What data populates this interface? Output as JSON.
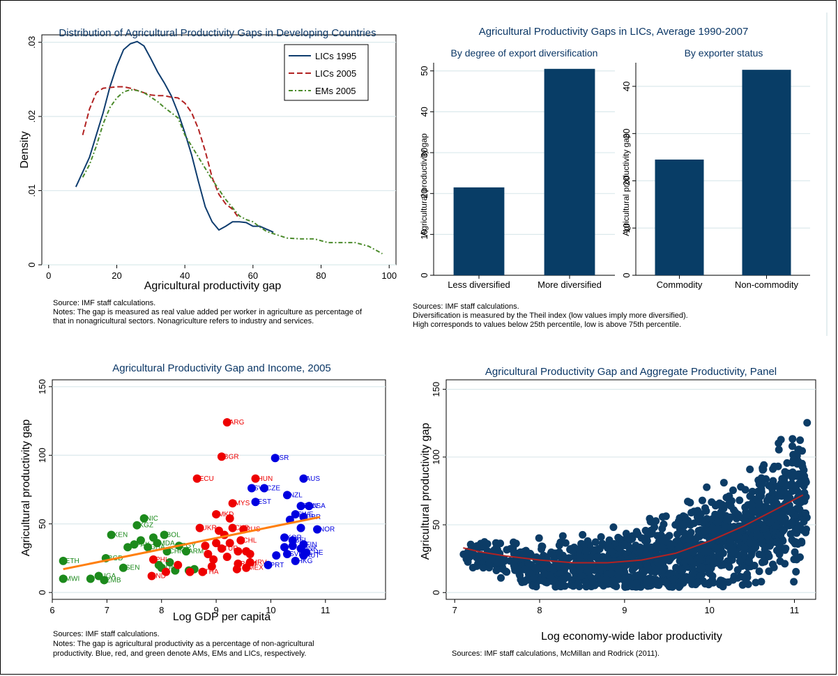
{
  "colors": {
    "title": "#0b3766",
    "lics_1995": "#0e3c6e",
    "lics_2005": "#b22222",
    "ems_2005": "#4a8a2a",
    "bar": "#083d66",
    "am": "#0000e0",
    "em": "#ee0000",
    "lic": "#1c8a1c",
    "fit": "#ff7f0e",
    "panel_dot": "#0c3c66",
    "panel_fit": "#b22222",
    "grid": "#dbe9ec"
  },
  "chart_data": [
    {
      "id": "density",
      "type": "line",
      "title": "Distribution of Agricultural Productivity Gaps in Developing Countries",
      "xlabel": "Agricultural productivity gap",
      "ylabel": "Density",
      "xlim": [
        -2,
        102
      ],
      "ylim": [
        0,
        0.031
      ],
      "xticks": [
        {
          "v": 0,
          "label": "0"
        },
        {
          "v": 20,
          "label": "20"
        },
        {
          "v": 40,
          "label": "40"
        },
        {
          "v": 60,
          "label": "60"
        },
        {
          "v": 80,
          "label": "80"
        },
        {
          "v": 100,
          "label": "100"
        }
      ],
      "yticks": [
        {
          "v": 0,
          "label": "0"
        },
        {
          "v": 0.01,
          "label": ".01"
        },
        {
          "v": 0.02,
          "label": ".02"
        },
        {
          "v": 0.03,
          "label": ".03"
        }
      ],
      "grid": true,
      "legend": "top-right",
      "series": [
        {
          "name": "LICs 1995",
          "style": "solid",
          "colorKey": "lics_1995",
          "x": [
            8,
            10,
            12,
            14,
            16,
            18,
            20,
            22,
            24,
            26,
            28,
            30,
            32,
            34,
            36,
            38,
            40,
            42,
            44,
            46,
            48,
            50,
            52,
            54,
            56,
            58,
            60,
            62,
            64,
            66
          ],
          "y": [
            0.0105,
            0.0125,
            0.0145,
            0.0175,
            0.0205,
            0.024,
            0.0268,
            0.029,
            0.0298,
            0.0301,
            0.0295,
            0.0278,
            0.026,
            0.0245,
            0.0228,
            0.0205,
            0.0178,
            0.0148,
            0.0112,
            0.0078,
            0.0058,
            0.0047,
            0.0052,
            0.0058,
            0.0058,
            0.0057,
            0.0052,
            0.0052,
            0.0048,
            0.0044
          ]
        },
        {
          "name": "LICs 2005",
          "style": "dashed",
          "colorKey": "lics_2005",
          "x": [
            10,
            12,
            14,
            16,
            18,
            20,
            22,
            24,
            26,
            28,
            30,
            32,
            34,
            36,
            38,
            40,
            42,
            44,
            46,
            48,
            50,
            52,
            54,
            56
          ],
          "y": [
            0.0175,
            0.021,
            0.0232,
            0.0238,
            0.0239,
            0.024,
            0.024,
            0.0238,
            0.0235,
            0.0232,
            0.0229,
            0.0228,
            0.0228,
            0.0226,
            0.0225,
            0.0218,
            0.0205,
            0.0183,
            0.0153,
            0.0118,
            0.0095,
            0.0082,
            0.0075,
            0.0062
          ]
        },
        {
          "name": "EMs 2005",
          "style": "dashdot",
          "colorKey": "ems_2005",
          "x": [
            10,
            12,
            14,
            16,
            18,
            20,
            22,
            24,
            26,
            28,
            30,
            32,
            34,
            36,
            38,
            40,
            44,
            48,
            52,
            56,
            58,
            60,
            62,
            64,
            66,
            68,
            70,
            74,
            78,
            82,
            86,
            90,
            94,
            98
          ],
          "y": [
            0.0118,
            0.0135,
            0.016,
            0.019,
            0.0212,
            0.0225,
            0.0233,
            0.0236,
            0.0235,
            0.0232,
            0.0226,
            0.022,
            0.0212,
            0.0205,
            0.0198,
            0.0175,
            0.0145,
            0.0115,
            0.0088,
            0.0066,
            0.0061,
            0.0058,
            0.0051,
            0.0045,
            0.0042,
            0.0039,
            0.0036,
            0.0035,
            0.0035,
            0.003,
            0.003,
            0.003,
            0.0025,
            0.0015
          ]
        }
      ],
      "source": "Source: IMF staff calculations.",
      "notes": [
        "Notes: The gap is measured as real value added per worker in agriculture as percentage of",
        "that in nonagricultural sectors. Nonagriculture refers to industry and services."
      ]
    },
    {
      "id": "bars",
      "type": "bar",
      "title": "Agricultural Productivity Gaps in LICs, Average 1990-2007",
      "panels": [
        {
          "subtitle": "By degree of export diversification",
          "ylabel": "Agricultural productivity gap",
          "categories": [
            "Less diversified",
            "More diversified"
          ],
          "values": [
            21.5,
            50.5
          ],
          "ylim": [
            0,
            52
          ],
          "yticks": [
            {
              "v": 0,
              "label": "0"
            },
            {
              "v": 10,
              "label": "10"
            },
            {
              "v": 20,
              "label": "20"
            },
            {
              "v": 30,
              "label": "30"
            },
            {
              "v": 40,
              "label": "40"
            },
            {
              "v": 50,
              "label": "50"
            }
          ]
        },
        {
          "subtitle": "By exporter status",
          "ylabel": "Agricultural productivity gap",
          "categories": [
            "Commodity",
            "Non-commodity"
          ],
          "values": [
            24.5,
            43.5
          ],
          "ylim": [
            0,
            45
          ],
          "yticks": [
            {
              "v": 0,
              "label": "0"
            },
            {
              "v": 10,
              "label": "10"
            },
            {
              "v": 20,
              "label": "20"
            },
            {
              "v": 30,
              "label": "30"
            },
            {
              "v": 40,
              "label": "40"
            }
          ]
        }
      ],
      "source": "Sources: IMF staff calculations.",
      "notes": [
        "Diversification is measured by the Theil index (low values imply more diversified).",
        "High corresponds to values below 25th percentile, low is above 75th percentile."
      ]
    },
    {
      "id": "income",
      "type": "scatter",
      "title": "Agricultural Productivity Gap and Income, 2005",
      "xlabel": "Log GDP per capita",
      "ylabel": "Agricultural productivity gap",
      "xlim": [
        6,
        12.1
      ],
      "ylim": [
        -5,
        155
      ],
      "xticks": [
        {
          "v": 6,
          "label": "6"
        },
        {
          "v": 7,
          "label": "7"
        },
        {
          "v": 8,
          "label": "8"
        },
        {
          "v": 9,
          "label": "9"
        },
        {
          "v": 10,
          "label": "10"
        },
        {
          "v": 11,
          "label": "11"
        }
      ],
      "yticks": [
        {
          "v": 0,
          "label": "0"
        },
        {
          "v": 50,
          "label": "50"
        },
        {
          "v": 100,
          "label": "100"
        },
        {
          "v": 150,
          "label": "150"
        }
      ],
      "grid": true,
      "groups": [
        "lic",
        "em",
        "am"
      ],
      "points": [
        {
          "x": 6.2,
          "y": 23,
          "label": "ETH",
          "g": "lic"
        },
        {
          "x": 6.2,
          "y": 10,
          "label": "MWI",
          "g": "lic"
        },
        {
          "x": 6.7,
          "y": 10,
          "label": "",
          "g": "lic"
        },
        {
          "x": 6.85,
          "y": 12,
          "label": "UGA",
          "g": "lic"
        },
        {
          "x": 6.95,
          "y": 9,
          "label": "ZMB",
          "g": "lic"
        },
        {
          "x": 6.98,
          "y": 25,
          "label": "BGD",
          "g": "lic"
        },
        {
          "x": 7.08,
          "y": 42,
          "label": "KEN",
          "g": "lic"
        },
        {
          "x": 7.3,
          "y": 18,
          "label": "SEN",
          "g": "lic"
        },
        {
          "x": 7.38,
          "y": 33,
          "label": "",
          "g": "lic"
        },
        {
          "x": 7.5,
          "y": 35,
          "label": "PAK",
          "g": "lic"
        },
        {
          "x": 7.55,
          "y": 49,
          "label": "KGZ",
          "g": "lic"
        },
        {
          "x": 7.68,
          "y": 54,
          "label": "NIC",
          "g": "lic"
        },
        {
          "x": 7.62,
          "y": 38,
          "label": "",
          "g": "lic"
        },
        {
          "x": 7.75,
          "y": 33,
          "label": "GHA",
          "g": "lic"
        },
        {
          "x": 7.85,
          "y": 40,
          "label": "",
          "g": "lic"
        },
        {
          "x": 7.92,
          "y": 36,
          "label": "MDA",
          "g": "lic"
        },
        {
          "x": 7.95,
          "y": 20,
          "label": "",
          "g": "lic"
        },
        {
          "x": 8.05,
          "y": 42,
          "label": "BOL",
          "g": "lic"
        },
        {
          "x": 8.0,
          "y": 18,
          "label": "IDN",
          "g": "lic"
        },
        {
          "x": 8.1,
          "y": 30,
          "label": "CHN",
          "g": "lic"
        },
        {
          "x": 8.15,
          "y": 22,
          "label": "",
          "g": "lic"
        },
        {
          "x": 8.25,
          "y": 16,
          "label": "",
          "g": "lic"
        },
        {
          "x": 8.32,
          "y": 34,
          "label": "EGY",
          "g": "lic"
        },
        {
          "x": 8.45,
          "y": 30,
          "label": "ARM",
          "g": "lic"
        },
        {
          "x": 8.5,
          "y": 16,
          "label": "",
          "g": "lic"
        },
        {
          "x": 8.6,
          "y": 17,
          "label": "",
          "g": "lic"
        },
        {
          "x": 9.2,
          "y": 124,
          "label": "ARG",
          "g": "em"
        },
        {
          "x": 9.1,
          "y": 99,
          "label": "BGR",
          "g": "em"
        },
        {
          "x": 8.65,
          "y": 83,
          "label": "ECU",
          "g": "em"
        },
        {
          "x": 9.72,
          "y": 83,
          "label": "HUN",
          "g": "em"
        },
        {
          "x": 9.3,
          "y": 65,
          "label": "MYS",
          "g": "em"
        },
        {
          "x": 9.0,
          "y": 57,
          "label": "MKD",
          "g": "em"
        },
        {
          "x": 9.25,
          "y": 54,
          "label": "",
          "g": "em"
        },
        {
          "x": 8.7,
          "y": 47,
          "label": "UKR",
          "g": "em"
        },
        {
          "x": 9.05,
          "y": 45,
          "label": "",
          "g": "em"
        },
        {
          "x": 9.3,
          "y": 47,
          "label": "CYP",
          "g": "em"
        },
        {
          "x": 9.5,
          "y": 46,
          "label": "RUS",
          "g": "em"
        },
        {
          "x": 9.15,
          "y": 42,
          "label": "",
          "g": "em"
        },
        {
          "x": 9.45,
          "y": 38,
          "label": "CHL",
          "g": "em"
        },
        {
          "x": 9.0,
          "y": 36,
          "label": "",
          "g": "em"
        },
        {
          "x": 9.25,
          "y": 36,
          "label": "",
          "g": "em"
        },
        {
          "x": 8.8,
          "y": 34,
          "label": "",
          "g": "em"
        },
        {
          "x": 9.1,
          "y": 32,
          "label": "TUR",
          "g": "em"
        },
        {
          "x": 9.4,
          "y": 30,
          "label": "",
          "g": "em"
        },
        {
          "x": 9.55,
          "y": 30,
          "label": "",
          "g": "em"
        },
        {
          "x": 9.62,
          "y": 28,
          "label": "",
          "g": "em"
        },
        {
          "x": 8.85,
          "y": 28,
          "label": "",
          "g": "em"
        },
        {
          "x": 9.2,
          "y": 26,
          "label": "",
          "g": "em"
        },
        {
          "x": 8.95,
          "y": 24,
          "label": "",
          "g": "em"
        },
        {
          "x": 7.85,
          "y": 24,
          "label": "PHL",
          "g": "em"
        },
        {
          "x": 9.4,
          "y": 21,
          "label": "ROM",
          "g": "em"
        },
        {
          "x": 9.62,
          "y": 22,
          "label": "HRV",
          "g": "em"
        },
        {
          "x": 9.55,
          "y": 18,
          "label": "MEX",
          "g": "em"
        },
        {
          "x": 9.38,
          "y": 17,
          "label": "",
          "g": "em"
        },
        {
          "x": 8.92,
          "y": 19,
          "label": "",
          "g": "em"
        },
        {
          "x": 8.75,
          "y": 15,
          "label": "THA",
          "g": "em"
        },
        {
          "x": 8.52,
          "y": 15,
          "label": "",
          "g": "em"
        },
        {
          "x": 7.82,
          "y": 12,
          "label": "IND",
          "g": "em"
        },
        {
          "x": 8.08,
          "y": 15,
          "label": "",
          "g": "em"
        },
        {
          "x": 8.3,
          "y": 20,
          "label": "",
          "g": "em"
        },
        {
          "x": 10.08,
          "y": 98,
          "label": "ISR",
          "g": "am"
        },
        {
          "x": 10.6,
          "y": 83,
          "label": "AUS",
          "g": "am"
        },
        {
          "x": 9.65,
          "y": 76,
          "label": "SVN",
          "g": "am"
        },
        {
          "x": 9.88,
          "y": 76,
          "label": "CZE",
          "g": "am"
        },
        {
          "x": 10.3,
          "y": 71,
          "label": "NZL",
          "g": "am"
        },
        {
          "x": 9.72,
          "y": 66,
          "label": "EST",
          "g": "am"
        },
        {
          "x": 10.55,
          "y": 63,
          "label": "CAN",
          "g": "am"
        },
        {
          "x": 10.7,
          "y": 63,
          "label": "USA",
          "g": "am"
        },
        {
          "x": 10.45,
          "y": 57,
          "label": "SWE",
          "g": "am"
        },
        {
          "x": 10.6,
          "y": 55,
          "label": "GBR",
          "g": "am"
        },
        {
          "x": 10.35,
          "y": 53,
          "label": "",
          "g": "am"
        },
        {
          "x": 10.85,
          "y": 46,
          "label": "NOR",
          "g": "am"
        },
        {
          "x": 10.55,
          "y": 47,
          "label": "",
          "g": "am"
        },
        {
          "x": 10.25,
          "y": 40,
          "label": "KOR",
          "g": "am"
        },
        {
          "x": 10.4,
          "y": 38,
          "label": "BEL",
          "g": "am"
        },
        {
          "x": 10.6,
          "y": 35,
          "label": "FIN",
          "g": "am"
        },
        {
          "x": 10.55,
          "y": 32,
          "label": "DNK",
          "g": "am"
        },
        {
          "x": 10.65,
          "y": 29,
          "label": "CHE",
          "g": "am"
        },
        {
          "x": 10.6,
          "y": 27,
          "label": "AUT",
          "g": "am"
        },
        {
          "x": 10.3,
          "y": 28,
          "label": "SVK",
          "g": "am"
        },
        {
          "x": 10.45,
          "y": 23,
          "label": "HKG",
          "g": "am"
        },
        {
          "x": 10.1,
          "y": 27,
          "label": "",
          "g": "am"
        },
        {
          "x": 9.95,
          "y": 20,
          "label": "PRT",
          "g": "am"
        },
        {
          "x": 10.4,
          "y": 34,
          "label": "",
          "g": "am"
        },
        {
          "x": 10.25,
          "y": 33,
          "label": "",
          "g": "am"
        }
      ],
      "fit": {
        "x": [
          6.2,
          10.9
        ],
        "y": [
          17,
          55
        ]
      },
      "source": "Sources: IMF staff calculations.",
      "notes": [
        "Notes: The gap is agricultural productivity as a percentage of non-agricultural",
        "productivity. Blue, red, and green denote AMs, EMs and LICs, respectively."
      ]
    },
    {
      "id": "panel",
      "type": "scatter",
      "title": "Agricultural Productivity Gap and Aggregate Productivity, Panel",
      "xlabel": "Log economy-wide labor productivity",
      "ylabel": "Agricultural productivity gap",
      "xlim": [
        6.9,
        11.25
      ],
      "ylim": [
        -5,
        157
      ],
      "xticks": [
        {
          "v": 7,
          "label": "7"
        },
        {
          "v": 8,
          "label": "8"
        },
        {
          "v": 9,
          "label": "9"
        },
        {
          "v": 10,
          "label": "10"
        },
        {
          "v": 11,
          "label": "11"
        }
      ],
      "yticks": [
        {
          "v": 0,
          "label": "0"
        },
        {
          "v": 50,
          "label": "50"
        },
        {
          "v": 100,
          "label": "100"
        },
        {
          "v": 150,
          "label": "150"
        }
      ],
      "grid": true,
      "fit": {
        "x": [
          7.1,
          7.3,
          7.6,
          8.0,
          8.4,
          8.8,
          9.2,
          9.6,
          10.0,
          10.4,
          10.8,
          11.1
        ],
        "y": [
          33,
          30,
          27,
          24,
          22,
          22,
          24,
          29,
          38,
          49,
          62,
          72
        ]
      },
      "source": "Sources: IMF staff calculations, McMillan and Rodrick (2011)."
    }
  ]
}
